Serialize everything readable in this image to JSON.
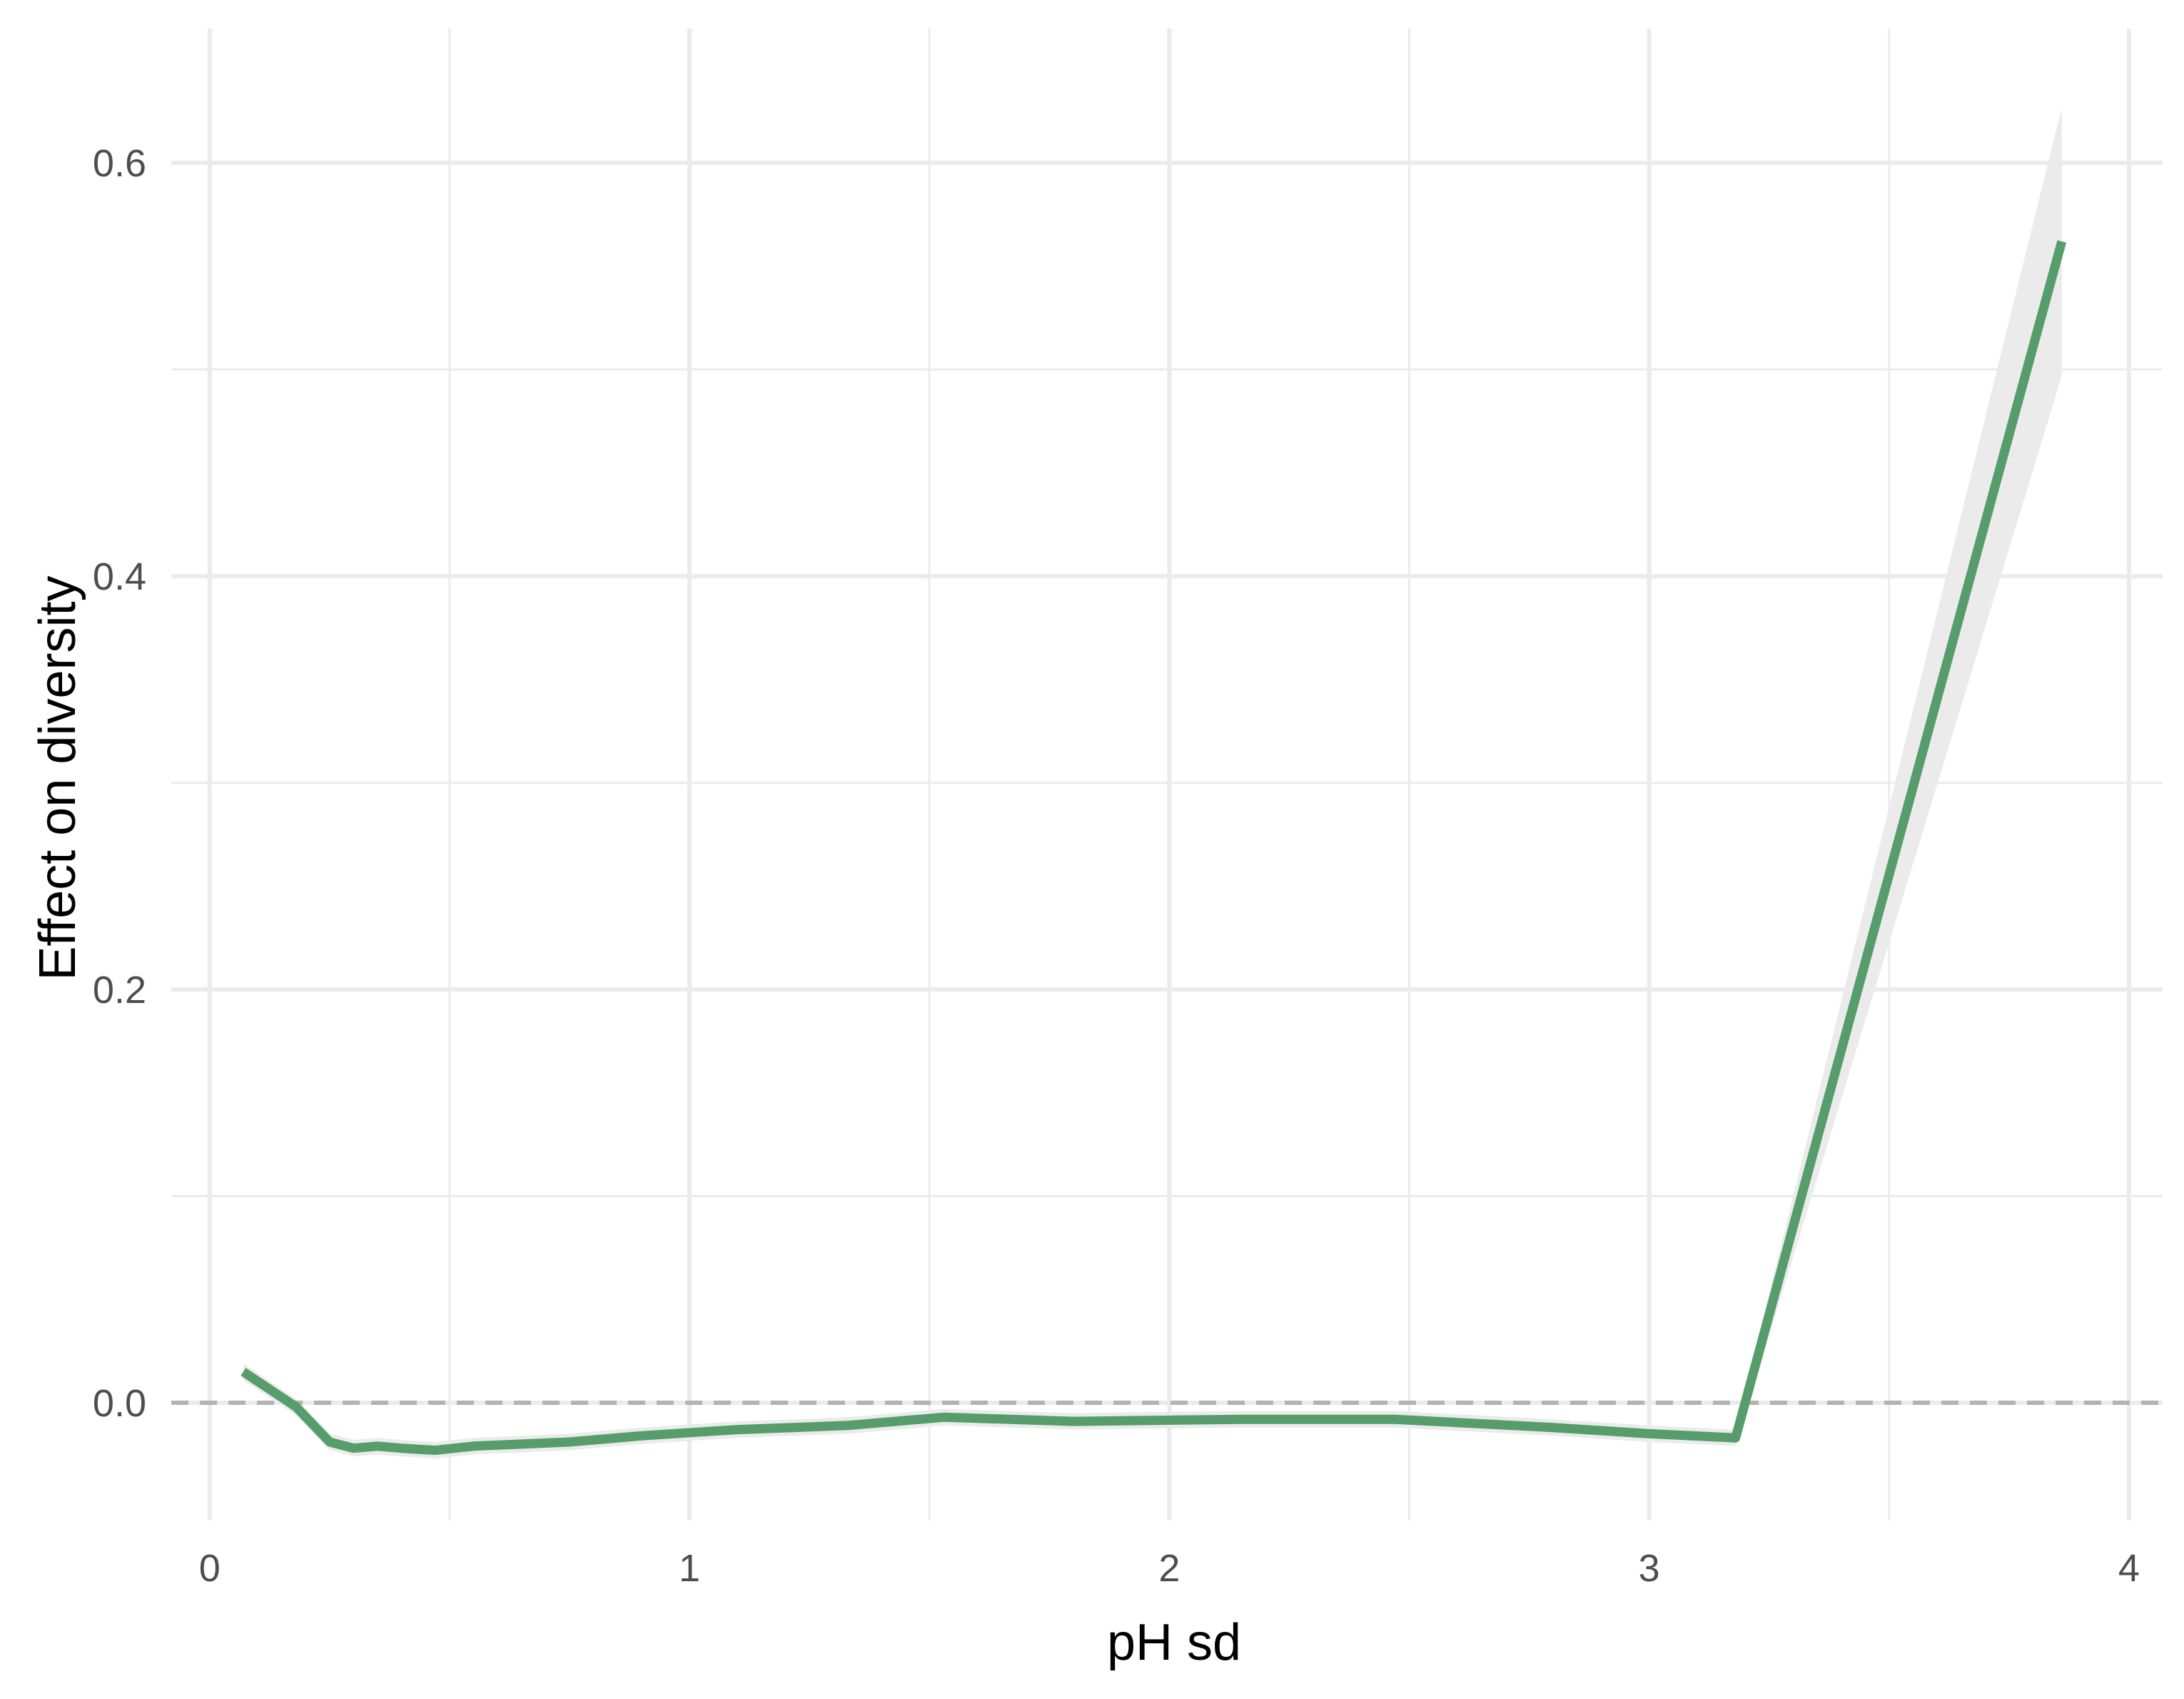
{
  "chart_data": {
    "type": "line",
    "title": "",
    "xlabel": "pH sd",
    "ylabel": "Effect on diversity",
    "xlim": [
      -0.08,
      4.07
    ],
    "ylim": [
      -0.057,
      0.665
    ],
    "x_ticks": [
      0,
      1,
      2,
      3,
      4
    ],
    "x_tick_labels": [
      "0",
      "1",
      "2",
      "3",
      "4"
    ],
    "y_ticks": [
      0.0,
      0.2,
      0.4,
      0.6
    ],
    "y_tick_labels": [
      "0.0",
      "0.2",
      "0.4",
      "0.6"
    ],
    "x_minor_ticks": [
      0.5,
      1.5,
      2.5,
      3.5
    ],
    "y_minor_ticks": [
      0.1,
      0.3,
      0.5
    ],
    "grid": true,
    "legend": "none",
    "reference_line": {
      "y": 0,
      "style": "dashed",
      "color": "#b3b3b3"
    },
    "colors": {
      "line": "#579c6b",
      "ribbon": "#ebebeb",
      "grid": "#ebebeb"
    },
    "series": [
      {
        "x": [
          0.07,
          0.18,
          0.25,
          0.3,
          0.35,
          0.4,
          0.47,
          0.55,
          0.75,
          0.9,
          1.1,
          1.33,
          1.53,
          1.8,
          2.15,
          2.47,
          2.8,
          3.0,
          3.18,
          3.86
        ],
        "y": [
          0.015,
          -0.002,
          -0.019,
          -0.022,
          -0.021,
          -0.022,
          -0.023,
          -0.021,
          -0.019,
          -0.016,
          -0.013,
          -0.011,
          -0.007,
          -0.009,
          -0.008,
          -0.008,
          -0.012,
          -0.015,
          -0.017,
          0.562
        ],
        "lower": [
          0.011,
          -0.006,
          -0.023,
          -0.026,
          -0.025,
          -0.026,
          -0.027,
          -0.025,
          -0.023,
          -0.02,
          -0.017,
          -0.015,
          -0.011,
          -0.013,
          -0.012,
          -0.012,
          -0.016,
          -0.019,
          -0.021,
          0.497
        ],
        "upper": [
          0.019,
          0.002,
          -0.015,
          -0.018,
          -0.017,
          -0.018,
          -0.019,
          -0.017,
          -0.015,
          -0.012,
          -0.009,
          -0.007,
          -0.003,
          -0.005,
          -0.004,
          -0.004,
          -0.008,
          -0.011,
          -0.013,
          0.627
        ]
      }
    ]
  }
}
